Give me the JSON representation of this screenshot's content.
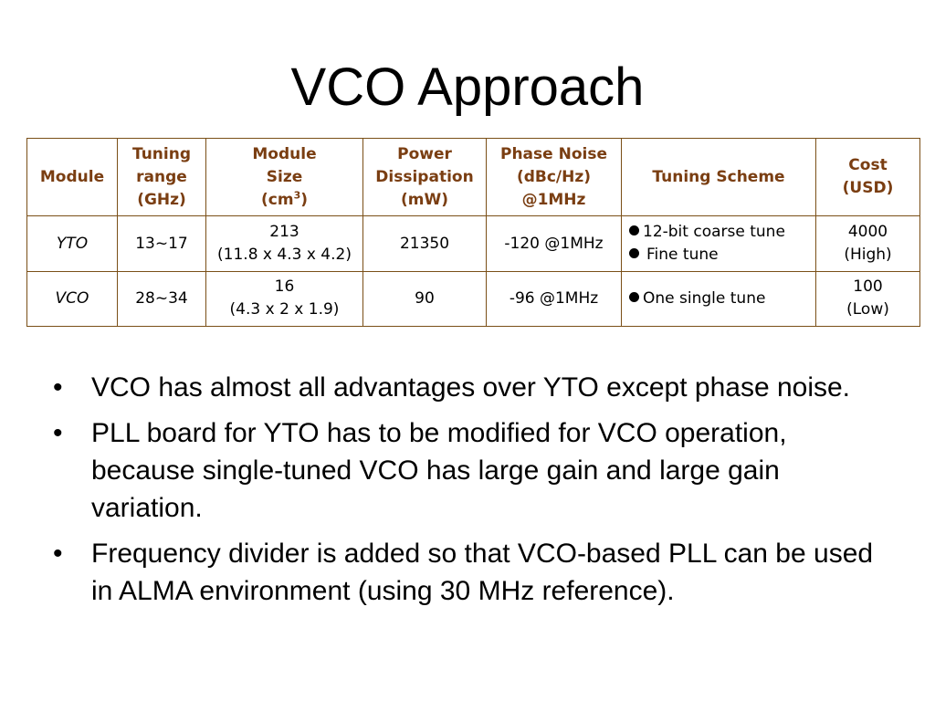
{
  "title": "VCO Approach",
  "table": {
    "headers": {
      "module": "Module",
      "tuning_range": [
        "Tuning",
        "range",
        "(GHz)"
      ],
      "module_size": [
        "Module",
        "Size",
        "(cm",
        "3",
        ")"
      ],
      "power": [
        "Power",
        "Dissipation",
        "(mW)"
      ],
      "phase_noise": [
        "Phase Noise",
        "(dBc/Hz)",
        "@1MHz"
      ],
      "tuning_scheme": "Tuning Scheme",
      "cost": [
        "Cost",
        "(USD)"
      ]
    },
    "rows": [
      {
        "module": "YTO",
        "tuning_range": "13~17",
        "size_value": "213",
        "size_dims": "(11.8 x 4.3 x 4.2)",
        "power": "21350",
        "phase_noise": "-120 @1MHz",
        "scheme": [
          "12-bit coarse tune",
          "Fine tune"
        ],
        "cost_value": "4000",
        "cost_level": "(High)"
      },
      {
        "module": "VCO",
        "tuning_range": "28~34",
        "size_value": "16",
        "size_dims": "(4.3 x 2 x 1.9)",
        "power": "90",
        "phase_noise": "-96 @1MHz",
        "scheme": [
          "One single tune"
        ],
        "cost_value": "100",
        "cost_level": "(Low)"
      }
    ]
  },
  "bullet_symbol": "•",
  "bullets": [
    "VCO has almost all advantages over YTO except phase noise.",
    "PLL board for YTO has to be modified for VCO operation, because single-tuned VCO has large gain and large gain variation.",
    "Frequency divider is added so that VCO-based PLL can be used in ALMA environment (using 30 MHz reference)."
  ],
  "colors": {
    "header_text": "#7a3e12",
    "table_border": "#7a4f17"
  }
}
